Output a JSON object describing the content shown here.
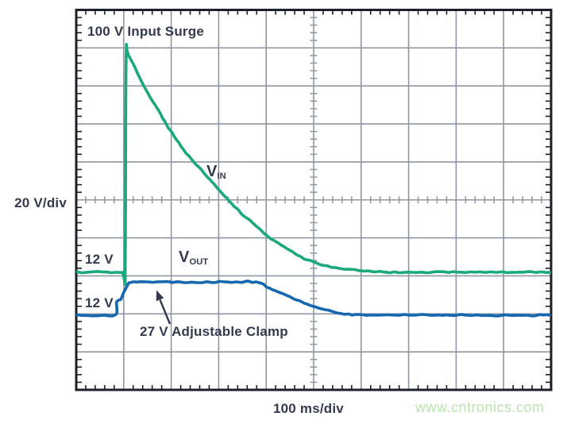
{
  "page": {
    "background": "#ffffff"
  },
  "labels": {
    "title": "100 V Input Surge",
    "y_scale": "20 V/div",
    "x_scale": "100 ms/div",
    "vin_main": "V",
    "vin_sub": "IN",
    "vout_main": "V",
    "vout_sub": "OUT",
    "green_baseline": "12 V",
    "blue_baseline": "12 V",
    "clamp_annotation": "27 V Adjustable Clamp"
  },
  "watermark": {
    "text": "www.cntronics.com",
    "color": "#bce5af"
  },
  "chart_data": {
    "type": "line",
    "title": "100 V Input Surge",
    "x_axis": {
      "label": "100 ms/div",
      "unit": "ms",
      "range": [
        0,
        1000
      ],
      "major_divisions": 10,
      "minor_per_major": 5
    },
    "y_axis": {
      "label": "20 V/div",
      "unit": "V",
      "volts_per_div": 20,
      "major_divisions": 10,
      "minor_per_major": 5
    },
    "grid": {
      "grid_color": "#9097a2",
      "border_color": "#1e2029",
      "background": "#ffffff"
    },
    "series": [
      {
        "name": "VIN",
        "color": "#1ca87d",
        "baseline_volts": 12,
        "baseline_div_from_top": 6.9,
        "peak_volts_approx": 125,
        "points_t_v": [
          [
            0,
            12
          ],
          [
            50,
            12
          ],
          [
            98,
            12
          ],
          [
            103,
            12.5
          ],
          [
            105,
            122
          ],
          [
            110,
            126
          ],
          [
            140,
            111
          ],
          [
            173,
            97
          ],
          [
            202,
            85
          ],
          [
            227,
            76
          ],
          [
            252,
            69
          ],
          [
            277,
            62
          ],
          [
            302,
            55
          ],
          [
            324,
            49
          ],
          [
            349,
            42.5
          ],
          [
            374,
            37.5
          ],
          [
            403,
            31
          ],
          [
            433,
            26
          ],
          [
            466,
            21
          ],
          [
            500,
            17
          ],
          [
            542,
            14.5
          ],
          [
            592,
            13
          ],
          [
            643,
            12
          ],
          [
            750,
            12
          ],
          [
            1000,
            12
          ]
        ]
      },
      {
        "name": "VOUT",
        "color": "#1568b0",
        "baseline_volts": 12,
        "baseline_div_from_top": 8.03,
        "clamp_volts_approx": 29,
        "points_t_v": [
          [
            0,
            12
          ],
          [
            50,
            12
          ],
          [
            83,
            12
          ],
          [
            85,
            19
          ],
          [
            93,
            20
          ],
          [
            99,
            23
          ],
          [
            108,
            27.5
          ],
          [
            116,
            29.2
          ],
          [
            160,
            29.4
          ],
          [
            220,
            29.2
          ],
          [
            300,
            29.4
          ],
          [
            379,
            29.3
          ],
          [
            408,
            26
          ],
          [
            441,
            22.5
          ],
          [
            475,
            18.7
          ],
          [
            508,
            15.8
          ],
          [
            542,
            13.7
          ],
          [
            575,
            12.4
          ],
          [
            609,
            11.9
          ],
          [
            750,
            11.9
          ],
          [
            1000,
            11.9
          ]
        ]
      }
    ],
    "annotations": [
      {
        "text": "100 V Input Surge",
        "position": "top-left-inside"
      },
      {
        "text": "27 V Adjustable Clamp",
        "arrow_points_to": "VOUT clamp plateau"
      },
      {
        "text": "12 V",
        "series": "VIN",
        "meaning": "VIN baseline level"
      },
      {
        "text": "12 V",
        "series": "VOUT",
        "meaning": "VOUT baseline level"
      }
    ],
    "legend_position": "labels-on-plot"
  }
}
